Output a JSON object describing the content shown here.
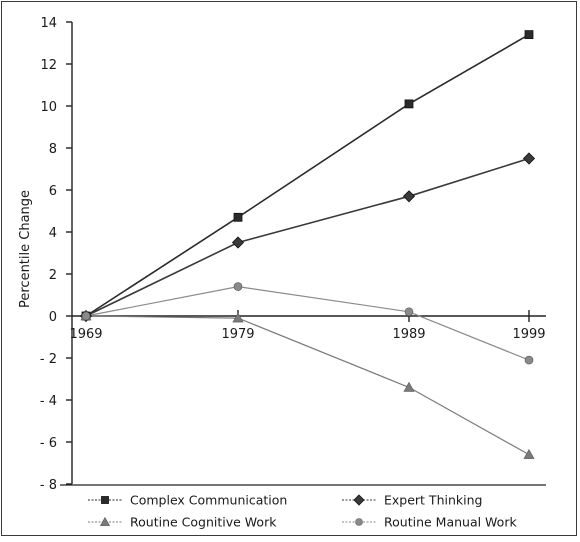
{
  "chart_data": {
    "type": "line",
    "ylabel": "Percentile Change",
    "xlabel": "",
    "x": [
      1969,
      1979,
      1989,
      1999
    ],
    "x_tick_labels": [
      "1969",
      "1979",
      "1989",
      "1999"
    ],
    "ylim": [
      -8,
      14
    ],
    "y_ticks": [
      14,
      12,
      10,
      8,
      6,
      4,
      2,
      0,
      -2,
      -4,
      -6,
      -8
    ],
    "y_tick_labels": [
      "14",
      "12",
      "10",
      "8",
      "6",
      "4",
      "2",
      "0",
      "- 2",
      "- 4",
      "- 6",
      "- 8"
    ],
    "grid": false,
    "legend_position": "bottom",
    "series": [
      {
        "name": "Complex Communication",
        "values": [
          0,
          4.7,
          10.1,
          13.4
        ],
        "color": "#2b2b2b",
        "marker": "square",
        "line": "solid"
      },
      {
        "name": "Expert Thinking",
        "values": [
          0,
          3.5,
          5.7,
          7.5
        ],
        "color": "#3a3a3a",
        "marker": "diamond",
        "line": "solid"
      },
      {
        "name": "Routine Cognitive Work",
        "values": [
          0,
          -0.1,
          -3.4,
          -6.6
        ],
        "color": "#7a7a7a",
        "marker": "triangle",
        "line": "solid"
      },
      {
        "name": "Routine Manual Work",
        "values": [
          0,
          1.4,
          0.2,
          -2.1
        ],
        "color": "#8a8a8a",
        "marker": "circle",
        "line": "solid"
      }
    ]
  }
}
